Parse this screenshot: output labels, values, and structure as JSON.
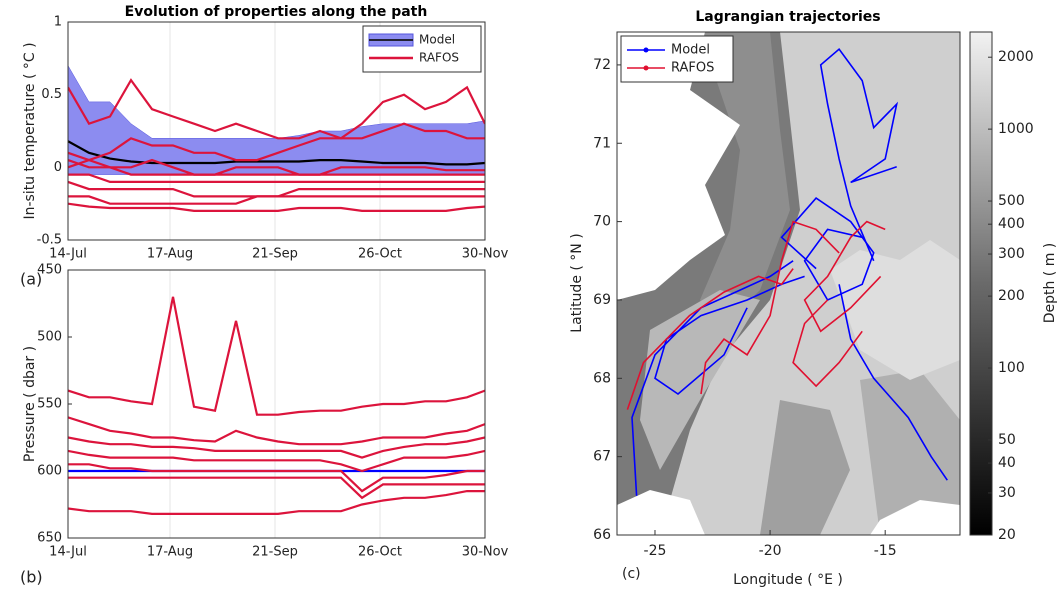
{
  "chart_data": [
    {
      "type": "line",
      "title": "Evolution of properties along the path",
      "ylabel": "In-situ temperature ( °C )",
      "panel_label": "(a)",
      "x": [
        0,
        7,
        14,
        21,
        28,
        35,
        42,
        49,
        56,
        63,
        70,
        77,
        84,
        91,
        98,
        105,
        112,
        119,
        126,
        133,
        139
      ],
      "xlim": [
        0,
        139
      ],
      "xticks": [
        {
          "value": 0,
          "label": "14-Jul"
        },
        {
          "value": 34,
          "label": "17-Aug"
        },
        {
          "value": 69,
          "label": "21-Sep"
        },
        {
          "value": 104,
          "label": "26-Oct"
        },
        {
          "value": 139,
          "label": "30-Nov"
        }
      ],
      "ylim": [
        -0.5,
        1
      ],
      "yticks": [
        -0.5,
        0,
        0.5,
        1
      ],
      "grid": "x",
      "legend": "upper right",
      "series": [
        {
          "name": "Model",
          "type": "band",
          "color": "#8c8cf0",
          "values": [
            0.7,
            0.45,
            0.45,
            0.3,
            0.2,
            0.2,
            0.2,
            0.2,
            0.2,
            0.2,
            0.2,
            0.22,
            0.25,
            0.25,
            0.28,
            0.3,
            0.3,
            0.3,
            0.3,
            0.3,
            0.32
          ],
          "lower": [
            -0.05,
            -0.05,
            -0.05,
            -0.05,
            -0.05,
            -0.05,
            -0.05,
            -0.05,
            -0.05,
            -0.05,
            -0.05,
            -0.05,
            -0.05,
            -0.05,
            -0.05,
            -0.05,
            -0.05,
            -0.05,
            -0.05,
            -0.05,
            -0.05
          ]
        },
        {
          "type": "line",
          "color": "#000000",
          "values": [
            0.18,
            0.1,
            0.06,
            0.04,
            0.03,
            0.03,
            0.03,
            0.03,
            0.04,
            0.04,
            0.04,
            0.04,
            0.05,
            0.05,
            0.04,
            0.03,
            0.03,
            0.03,
            0.02,
            0.02,
            0.03
          ]
        },
        {
          "name": "RAFOS",
          "type": "tracks",
          "color": "#dc143c",
          "tracks": [
            [
              0.55,
              0.3,
              0.35,
              0.6,
              0.4,
              0.35,
              0.3,
              0.25,
              0.3,
              0.25,
              0.2,
              0.2,
              0.25,
              0.2,
              0.3,
              0.45,
              0.5,
              0.4,
              0.45,
              0.55,
              0.3
            ],
            [
              0.1,
              0.05,
              0.1,
              0.2,
              0.15,
              0.15,
              0.1,
              0.1,
              0.05,
              0.05,
              0.1,
              0.15,
              0.2,
              0.2,
              0.2,
              0.25,
              0.3,
              0.25,
              0.25,
              0.2,
              0.2
            ],
            [
              0,
              0.05,
              0,
              0,
              0.05,
              0,
              -0.05,
              -0.05,
              0,
              0,
              0,
              -0.05,
              -0.05,
              -0.05,
              -0.05,
              -0.05,
              -0.05,
              -0.05,
              -0.05,
              -0.05,
              -0.05
            ],
            [
              0.05,
              0,
              0,
              -0.05,
              -0.05,
              -0.05,
              -0.05,
              -0.05,
              -0.05,
              -0.05,
              -0.05,
              -0.05,
              -0.05,
              0,
              0,
              0,
              0,
              0,
              -0.02,
              -0.02,
              -0.02
            ],
            [
              -0.05,
              -0.05,
              -0.1,
              -0.1,
              -0.1,
              -0.1,
              -0.1,
              -0.1,
              -0.1,
              -0.1,
              -0.1,
              -0.1,
              -0.1,
              -0.1,
              -0.1,
              -0.1,
              -0.1,
              -0.1,
              -0.1,
              -0.1,
              -0.1
            ],
            [
              -0.1,
              -0.15,
              -0.15,
              -0.15,
              -0.15,
              -0.15,
              -0.2,
              -0.2,
              -0.2,
              -0.2,
              -0.2,
              -0.15,
              -0.15,
              -0.15,
              -0.15,
              -0.15,
              -0.15,
              -0.15,
              -0.15,
              -0.15,
              -0.15
            ],
            [
              -0.2,
              -0.2,
              -0.25,
              -0.25,
              -0.25,
              -0.25,
              -0.25,
              -0.25,
              -0.25,
              -0.2,
              -0.2,
              -0.2,
              -0.2,
              -0.2,
              -0.2,
              -0.2,
              -0.2,
              -0.2,
              -0.2,
              -0.2,
              -0.2
            ],
            [
              -0.25,
              -0.27,
              -0.28,
              -0.28,
              -0.28,
              -0.28,
              -0.3,
              -0.3,
              -0.3,
              -0.3,
              -0.3,
              -0.28,
              -0.28,
              -0.28,
              -0.3,
              -0.3,
              -0.3,
              -0.3,
              -0.3,
              -0.28,
              -0.27
            ]
          ]
        }
      ]
    },
    {
      "type": "line",
      "ylabel": "Pressure ( dbar )",
      "panel_label": "(b)",
      "x": [
        0,
        7,
        14,
        21,
        28,
        35,
        42,
        49,
        56,
        63,
        70,
        77,
        84,
        91,
        98,
        105,
        112,
        119,
        126,
        133,
        139
      ],
      "xlim": [
        0,
        139
      ],
      "xticks": [
        {
          "value": 0,
          "label": "14-Jul"
        },
        {
          "value": 34,
          "label": "17-Aug"
        },
        {
          "value": 69,
          "label": "21-Sep"
        },
        {
          "value": 104,
          "label": "26-Oct"
        },
        {
          "value": 139,
          "label": "30-Nov"
        }
      ],
      "ylim": [
        450,
        650
      ],
      "yticks": [
        450,
        500,
        550,
        600,
        650
      ],
      "reverse_y": true,
      "grid": "x",
      "series": [
        {
          "name": "Model",
          "type": "line",
          "color": "#0000ff",
          "values": [
            600,
            600,
            600,
            600,
            600,
            600,
            600,
            600,
            600,
            600,
            600,
            600,
            600,
            600,
            600,
            600,
            600,
            600,
            600,
            600,
            600
          ]
        },
        {
          "name": "RAFOS",
          "type": "tracks",
          "color": "#dc143c",
          "tracks": [
            [
              540,
              545,
              545,
              548,
              550,
              470,
              552,
              555,
              488,
              558,
              558,
              556,
              555,
              555,
              552,
              550,
              550,
              548,
              548,
              545,
              540
            ],
            [
              560,
              565,
              570,
              572,
              575,
              575,
              577,
              578,
              570,
              575,
              578,
              580,
              580,
              580,
              578,
              575,
              575,
              575,
              572,
              570,
              565
            ],
            [
              575,
              578,
              580,
              580,
              582,
              582,
              583,
              585,
              585,
              585,
              585,
              585,
              585,
              585,
              590,
              585,
              582,
              580,
              580,
              578,
              575
            ],
            [
              585,
              588,
              590,
              590,
              590,
              590,
              592,
              592,
              592,
              592,
              592,
              592,
              592,
              595,
              600,
              595,
              590,
              590,
              590,
              588,
              585
            ],
            [
              595,
              595,
              598,
              598,
              600,
              600,
              600,
              600,
              600,
              600,
              600,
              600,
              600,
              600,
              615,
              605,
              605,
              605,
              603,
              600,
              600
            ],
            [
              605,
              605,
              605,
              605,
              605,
              605,
              605,
              605,
              605,
              605,
              605,
              605,
              605,
              605,
              620,
              610,
              610,
              610,
              610,
              610,
              610
            ],
            [
              628,
              630,
              630,
              630,
              632,
              632,
              632,
              632,
              632,
              632,
              632,
              630,
              630,
              630,
              625,
              622,
              620,
              620,
              618,
              615,
              615
            ]
          ]
        }
      ]
    },
    {
      "type": "map",
      "title": "Lagrangian trajectories",
      "xlabel": "Longitude ( °E )",
      "ylabel": "Latitude ( °N )",
      "panel_label": "(c)",
      "xlim": [
        -26.65,
        -11.75
      ],
      "xticks": [
        -25,
        -20,
        -15
      ],
      "ylim": [
        66,
        72.42
      ],
      "yticks": [
        66,
        67,
        68,
        69,
        70,
        71,
        72
      ],
      "legend": "upper left",
      "colorbar": {
        "label": "Depth ( m )",
        "lim": [
          20,
          2550
        ],
        "log": true,
        "ticks": [
          20,
          30,
          40,
          50,
          100,
          200,
          300,
          400,
          500,
          1000,
          2000
        ]
      },
      "series": [
        {
          "name": "Model",
          "color": "#0000ff",
          "tracks": [
            {
              "x": [
                -15.5,
                -16.5,
                -17,
                -17.5,
                -17.8,
                -17,
                -16,
                -15.5,
                -14.5,
                -15,
                -16.5,
                -14.5
              ],
              "y": [
                69.5,
                70.2,
                70.8,
                71.5,
                72,
                72.2,
                71.8,
                71.2,
                71.5,
                70.8,
                70.5,
                70.7
              ]
            },
            {
              "x": [
                -18.5,
                -19.5,
                -21,
                -23,
                -24.5,
                -25,
                -24,
                -22,
                -21
              ],
              "y": [
                69.3,
                69.2,
                69,
                68.8,
                68.5,
                68,
                67.8,
                68.3,
                68.9
              ]
            },
            {
              "x": [
                -17,
                -16.5,
                -15.5,
                -14,
                -13,
                -12.3
              ],
              "y": [
                69.2,
                68.5,
                68,
                67.5,
                67,
                66.7
              ]
            },
            {
              "x": [
                -19,
                -20,
                -21.5,
                -23,
                -25,
                -26,
                -25.8
              ],
              "y": [
                69.5,
                69.3,
                69.1,
                68.9,
                68.3,
                67.5,
                66.5
              ]
            },
            {
              "x": [
                -16,
                -17.5,
                -18.5,
                -17.5,
                -16,
                -15.5,
                -16.5,
                -18,
                -19.5,
                -18
              ],
              "y": [
                69.8,
                69.9,
                69.5,
                69,
                69.2,
                69.6,
                70,
                70.3,
                69.8,
                69.4
              ]
            }
          ]
        },
        {
          "name": "RAFOS",
          "color": "#e01030",
          "tracks": [
            {
              "x": [
                -19,
                -19.5,
                -20.5,
                -22,
                -23.5,
                -24.5,
                -25.5,
                -26.2
              ],
              "y": [
                69.4,
                69.2,
                69.3,
                69.1,
                68.8,
                68.5,
                68.2,
                67.6
              ]
            },
            {
              "x": [
                -17,
                -18,
                -19,
                -19.5,
                -20,
                -21,
                -22,
                -22.8,
                -23
              ],
              "y": [
                69.6,
                69.9,
                70,
                69.5,
                68.8,
                68.3,
                68.5,
                68.2,
                67.8
              ]
            },
            {
              "x": [
                -15,
                -15.8,
                -16.5,
                -17.5,
                -18.5,
                -17.8,
                -16.5,
                -15.2
              ],
              "y": [
                69.9,
                70,
                69.8,
                69.3,
                69,
                68.6,
                68.9,
                69.3
              ]
            },
            {
              "x": [
                -17.5,
                -18.5,
                -19,
                -18,
                -17,
                -16
              ],
              "y": [
                69,
                68.7,
                68.2,
                67.9,
                68.2,
                68.6
              ]
            }
          ]
        }
      ]
    }
  ]
}
